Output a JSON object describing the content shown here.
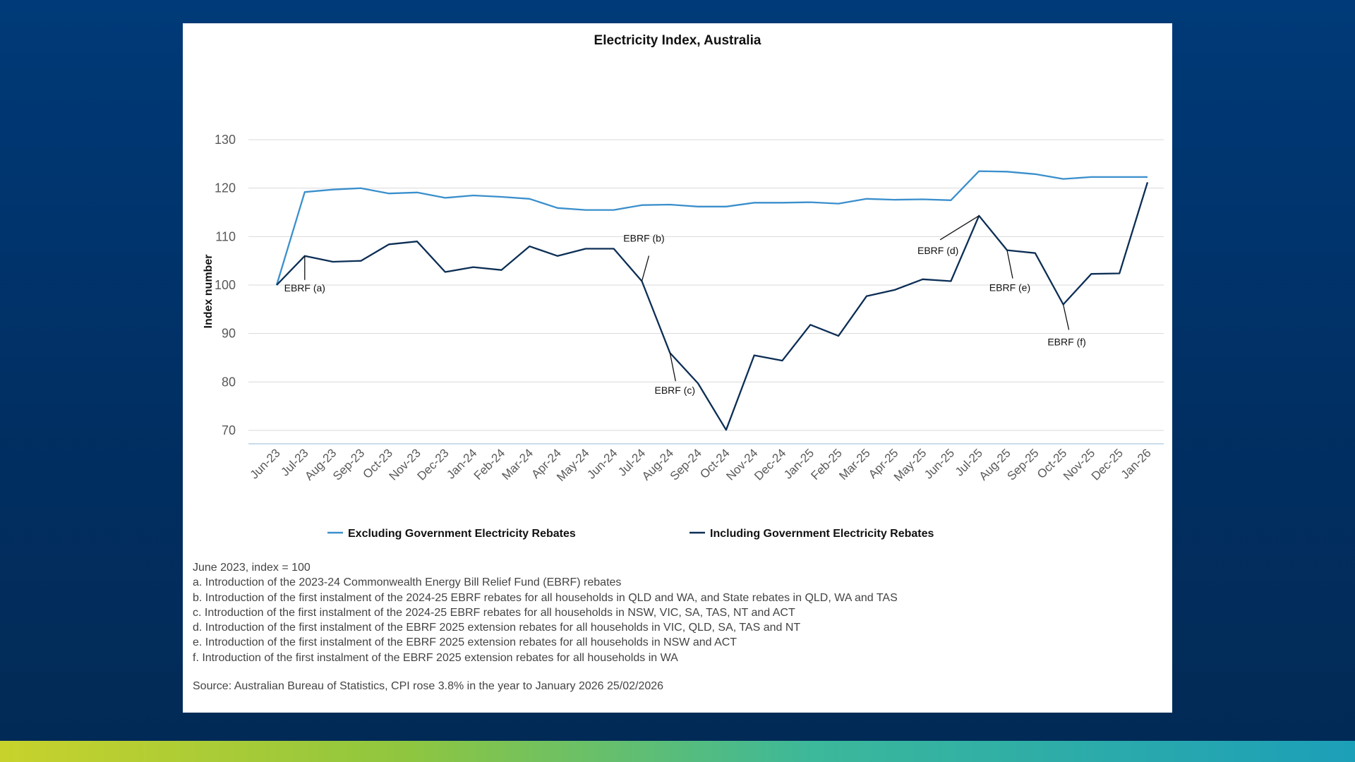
{
  "chart_data": {
    "type": "line",
    "title": "Electricity Index, Australia",
    "xlabel": "",
    "ylabel": "Index number",
    "ylim": [
      70,
      130
    ],
    "yticks": [
      70,
      80,
      90,
      100,
      110,
      120,
      130
    ],
    "grid": true,
    "legend_position": "bottom",
    "categories": [
      "Jun-23",
      "Jul-23",
      "Aug-23",
      "Sep-23",
      "Oct-23",
      "Nov-23",
      "Dec-23",
      "Jan-24",
      "Feb-24",
      "Mar-24",
      "Apr-24",
      "May-24",
      "Jun-24",
      "Jul-24",
      "Aug-24",
      "Sep-24",
      "Oct-24",
      "Nov-24",
      "Dec-24",
      "Jan-25",
      "Feb-25",
      "Mar-25",
      "Apr-25",
      "May-25",
      "Jun-25",
      "Jul-25",
      "Aug-25",
      "Sep-25",
      "Oct-25",
      "Nov-25",
      "Dec-25",
      "Jan-26"
    ],
    "series": [
      {
        "name": "Excluding Government Electricity Rebates",
        "color": "#3a8fcc",
        "values": [
          100,
          119.2,
          119.7,
          120.0,
          118.9,
          119.1,
          118.0,
          118.5,
          118.2,
          117.8,
          115.9,
          115.5,
          115.5,
          116.5,
          116.6,
          116.2,
          116.2,
          117.0,
          117.0,
          117.1,
          116.8,
          117.8,
          117.6,
          117.7,
          117.5,
          123.5,
          123.4,
          122.9,
          121.9,
          122.3,
          122.3,
          122.3
        ]
      },
      {
        "name": "Including Government Electricity Rebates",
        "color": "#0c2e55",
        "values": [
          100,
          106.0,
          104.8,
          105.0,
          108.4,
          109.0,
          102.7,
          103.7,
          103.1,
          108.0,
          106.0,
          107.5,
          107.5,
          100.8,
          86.0,
          79.7,
          70.1,
          85.5,
          84.4,
          91.8,
          89.5,
          97.7,
          99.0,
          101.2,
          100.8,
          114.3,
          107.2,
          106.6,
          96.0,
          102.3,
          102.4,
          121.2
        ]
      }
    ],
    "annotations": [
      {
        "label": "EBRF (a)",
        "category": "Jul-23",
        "series": 1
      },
      {
        "label": "EBRF (b)",
        "category": "Jul-24",
        "series": 1
      },
      {
        "label": "EBRF (c)",
        "category": "Aug-24",
        "series": 1
      },
      {
        "label": "EBRF (d)",
        "category": "Jul-25",
        "series": 1
      },
      {
        "label": "EBRF (e)",
        "category": "Aug-25",
        "series": 1
      },
      {
        "label": "EBRF (f)",
        "category": "Oct-25",
        "series": 1
      }
    ]
  },
  "notes": {
    "base": "June 2023, index = 100",
    "items": [
      "a. Introduction of the 2023-24 Commonwealth Energy Bill Relief Fund (EBRF) rebates",
      "b. Introduction of the first instalment of the 2024-25 EBRF rebates for all households in QLD and WA, and State rebates in QLD, WA and TAS",
      "c. Introduction of the first instalment of the 2024-25 EBRF rebates for all households in NSW, VIC, SA, TAS, NT and ACT",
      "d. Introduction of the first instalment of the EBRF 2025 extension rebates for all households in VIC, QLD, SA, TAS and NT",
      "e. Introduction of the first instalment of the EBRF 2025 extension rebates for all households in NSW and ACT",
      "f. Introduction of the first instalment of the EBRF 2025 extension rebates for all households in WA"
    ],
    "source": "Source: Australian Bureau of Statistics, CPI rose 3.8% in the year to January 2026 25/02/2026"
  }
}
